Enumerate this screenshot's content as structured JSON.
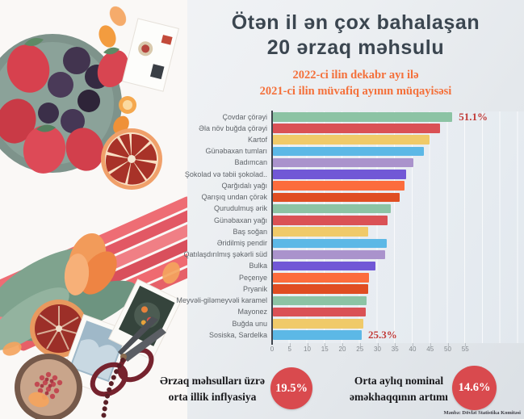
{
  "title": {
    "line1": "Ötən il ən çox bahalaşan",
    "line2": "20 ərzaq məhsulu"
  },
  "subtitle": {
    "line1": "2022-ci ilin dekabr ayı ilə",
    "line2": "2021-ci ilin müvafiq ayının müqayisəsi",
    "color": "#f4703a"
  },
  "chart_data": {
    "type": "bar",
    "orientation": "horizontal",
    "title": "Ötən il ən çox bahalaşan 20 ərzaq məhsulu",
    "subtitle": "2022-ci ilin dekabr ayı ilə 2021-ci ilin müvafiq ayının müqayisəsi",
    "categories": [
      "Çovdar çörəyi",
      "Əla növ buğda çörəyi",
      "Kartof",
      "Günəbaxan tumları",
      "Badımcan",
      "Şokolad və təbii şokolad..",
      "Qarğıdalı yağı",
      "Qarışıq undan çörək",
      "Qurudulmuş ərik",
      "Günəbaxan yağı",
      "Baş soğan",
      "Əridilmiş pendir",
      "Qatılaşdırılmış şəkərli süd",
      "Bulka",
      "Peçenye",
      "Pryanik",
      "Meyvəli-giləmeyvəli karamel",
      "Mayonez",
      "Buğda unu",
      "Sosiska, Sardelka"
    ],
    "values": [
      51.1,
      47.5,
      44.5,
      43.0,
      40.0,
      38.0,
      37.5,
      36.2,
      33.5,
      32.6,
      27.2,
      32.4,
      31.9,
      29.3,
      27.4,
      27.1,
      26.7,
      26.4,
      25.8,
      25.3
    ],
    "unit": "%",
    "xticks": [
      0,
      5,
      10,
      15,
      20,
      25,
      30,
      35,
      40,
      45,
      50,
      55
    ],
    "xlim": [
      0,
      72
    ],
    "grid": "vertical",
    "legend": "none",
    "annotations": [
      {
        "index": 0,
        "label": "51.1%"
      },
      {
        "index": 19,
        "label": "25.3%"
      }
    ],
    "value_label_color": "#c23b38",
    "palette": [
      "#8cc3a4",
      "#da5155",
      "#f0ca69",
      "#5cb8e6",
      "#aa93cc",
      "#7158d6",
      "#fc6c3c",
      "#e04d22"
    ],
    "plot_bg": "#e9eef3"
  },
  "stats": [
    {
      "label_line1": "Ərzaq məhsulları üzrə",
      "label_line2": "orta illik inflyasiya",
      "value": "19.5%",
      "badge_color": "#d94a4e"
    },
    {
      "label_line1": "Orta aylıq nominal",
      "label_line2": "əməkhaqqının artımı",
      "value": "14.6%",
      "badge_color": "#d94a4e"
    }
  ],
  "source": "Mənbə: Dövlət Statistika Komitəsi"
}
